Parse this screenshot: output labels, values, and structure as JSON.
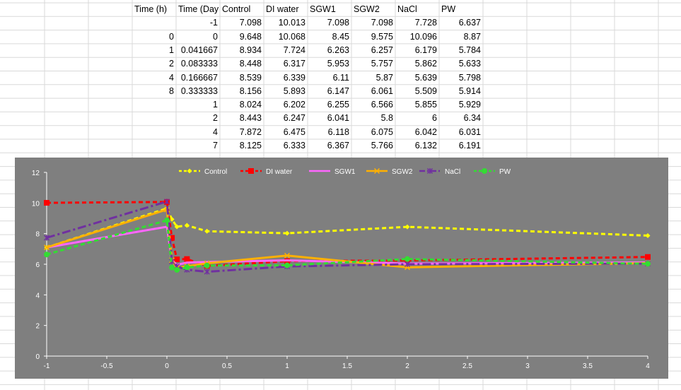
{
  "table": {
    "headers": [
      "Time (h)",
      "Time (Day",
      "Control",
      "DI water",
      "SGW1",
      "SGW2",
      "NaCl",
      "PW"
    ],
    "rows": [
      [
        "",
        "-1",
        "7.098",
        "10.013",
        "7.098",
        "7.098",
        "7.728",
        "6.637"
      ],
      [
        "0",
        "0",
        "9.648",
        "10.068",
        "8.45",
        "9.575",
        "10.096",
        "8.87"
      ],
      [
        "1",
        "0.041667",
        "8.934",
        "7.724",
        "6.263",
        "6.257",
        "6.179",
        "5.784"
      ],
      [
        "2",
        "0.083333",
        "8.448",
        "6.317",
        "5.953",
        "5.757",
        "5.862",
        "5.633"
      ],
      [
        "4",
        "0.166667",
        "8.539",
        "6.339",
        "6.11",
        "5.87",
        "5.639",
        "5.798"
      ],
      [
        "8",
        "0.333333",
        "8.156",
        "5.893",
        "6.147",
        "6.061",
        "5.509",
        "5.914"
      ],
      [
        "",
        "1",
        "8.024",
        "6.202",
        "6.255",
        "6.566",
        "5.855",
        "5.929"
      ],
      [
        "",
        "2",
        "8.443",
        "6.247",
        "6.041",
        "5.8",
        "6",
        "6.34"
      ],
      [
        "",
        "4",
        "7.872",
        "6.475",
        "6.118",
        "6.075",
        "6.042",
        "6.031"
      ],
      [
        "",
        "7",
        "8.125",
        "6.333",
        "6.367",
        "5.766",
        "6.132",
        "6.191"
      ]
    ]
  },
  "chart_data": {
    "type": "line",
    "title": "",
    "xlabel": "",
    "ylabel": "",
    "xlim": [
      -1,
      4
    ],
    "ylim": [
      0,
      12
    ],
    "x_ticks": [
      "-1",
      "-0.5",
      "0",
      "0.5",
      "1",
      "1.5",
      "2",
      "2.5",
      "3",
      "3.5",
      "4"
    ],
    "y_ticks": [
      "0",
      "2",
      "4",
      "6",
      "8",
      "10",
      "12"
    ],
    "legend_position": "top",
    "grid": false,
    "background": "#7f7f7f",
    "x": [
      -1,
      0,
      0.041667,
      0.083333,
      0.166667,
      0.333333,
      1,
      2,
      4,
      7
    ],
    "series": [
      {
        "name": "Control",
        "color": "#ffff00",
        "dash": "dashed",
        "marker": "diamond",
        "values": [
          7.098,
          9.648,
          8.934,
          8.448,
          8.539,
          8.156,
          8.024,
          8.443,
          7.872,
          8.125
        ]
      },
      {
        "name": "DI water",
        "color": "#ff0000",
        "dash": "dashed",
        "marker": "square",
        "values": [
          10.013,
          10.068,
          7.724,
          6.317,
          6.339,
          5.893,
          6.202,
          6.247,
          6.475,
          6.333
        ]
      },
      {
        "name": "SGW1",
        "color": "#ff66ff",
        "dash": "solid",
        "marker": "none",
        "values": [
          7.098,
          8.45,
          6.263,
          5.953,
          6.11,
          6.147,
          6.255,
          6.041,
          6.118,
          6.367
        ]
      },
      {
        "name": "SGW2",
        "color": "#ffb000",
        "dash": "solid",
        "marker": "x",
        "values": [
          7.098,
          9.575,
          6.257,
          5.757,
          5.87,
          6.061,
          6.566,
          5.8,
          6.075,
          5.766
        ]
      },
      {
        "name": "NaCl",
        "color": "#7030a0",
        "dash": "dashdot",
        "marker": "star",
        "values": [
          7.728,
          10.096,
          6.179,
          5.862,
          5.639,
          5.509,
          5.855,
          6,
          6.042,
          6.132
        ]
      },
      {
        "name": "PW",
        "color": "#33dd33",
        "dash": "dashed",
        "marker": "circle",
        "values": [
          6.637,
          8.87,
          5.784,
          5.633,
          5.798,
          5.914,
          5.929,
          6.34,
          6.031,
          6.191
        ]
      }
    ]
  }
}
